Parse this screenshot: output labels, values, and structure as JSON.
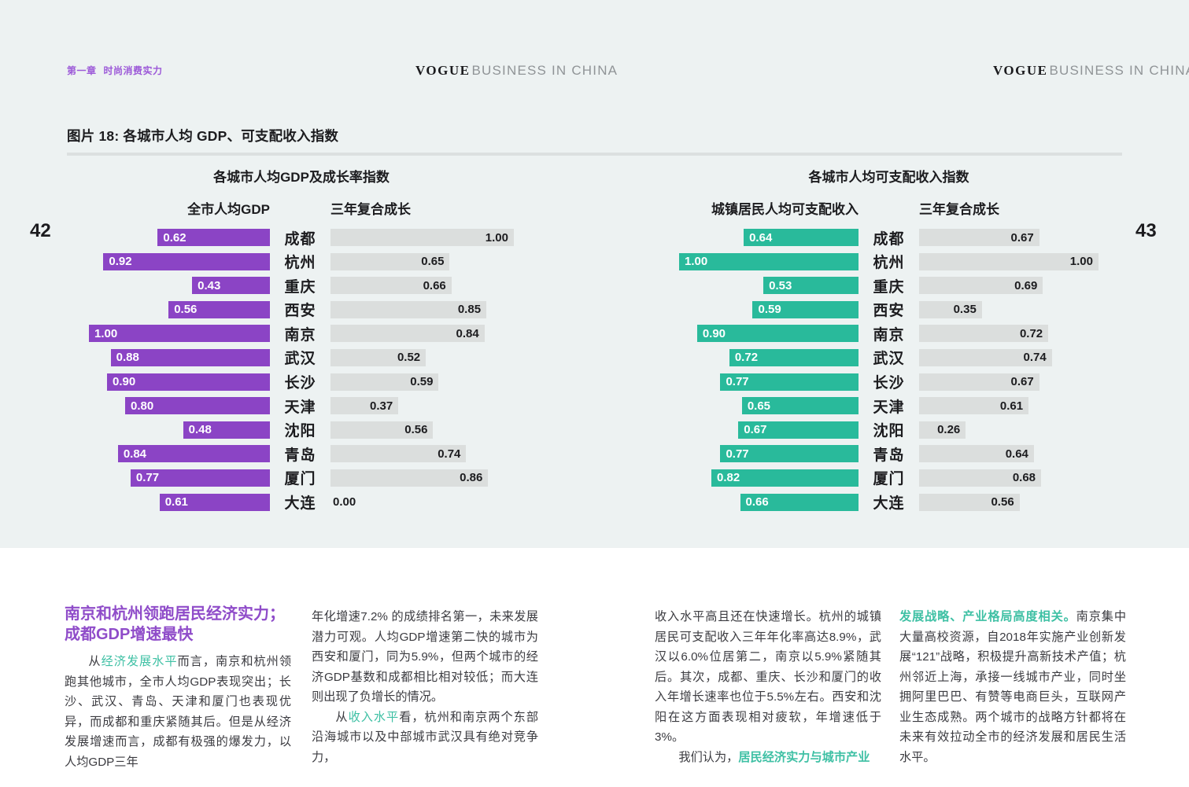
{
  "page": {
    "chapter_label": "第一章",
    "section_label": "时尚消费实力",
    "logo_serif": "VOGUE",
    "logo_sans": "BUSINESS IN CHINA",
    "figure_title": "图片 18: 各城市人均 GDP、可支配收入指数",
    "page_number_left": "42",
    "page_number_right": "43"
  },
  "colors": {
    "panel_background": "#EDF2F2",
    "gdp_bar": "#8B44C5",
    "income_bar": "#29BA9B",
    "growth_bar": "#DBDEDD",
    "heading_purple": "#8F4CC9",
    "accent_teal": "#3EC0A4"
  },
  "chart_data": [
    {
      "type": "bar",
      "title": "各城市人均GDP及成长率指数",
      "categories": [
        "成都",
        "杭州",
        "重庆",
        "西安",
        "南京",
        "武汉",
        "长沙",
        "天津",
        "沈阳",
        "青岛",
        "厦门",
        "大连"
      ],
      "series": [
        {
          "name": "全市人均GDP",
          "color": "#8B44C5",
          "align": "right",
          "values": [
            "0.62",
            "0.92",
            "0.43",
            "0.56",
            "1.00",
            "0.88",
            "0.90",
            "0.80",
            "0.48",
            "0.84",
            "0.77",
            "0.61"
          ]
        },
        {
          "name": "三年复合成长",
          "color": "#DBDEDD",
          "align": "left",
          "values": [
            "1.00",
            "0.65",
            "0.66",
            "0.85",
            "0.84",
            "0.52",
            "0.59",
            "0.37",
            "0.56",
            "0.74",
            "0.86",
            "0.00"
          ]
        }
      ],
      "xlim": [
        0,
        1
      ],
      "value_labels": "inside-bar",
      "grid": false,
      "legend": "column-headers"
    },
    {
      "type": "bar",
      "title": "各城市人均可支配收入指数",
      "categories": [
        "成都",
        "杭州",
        "重庆",
        "西安",
        "南京",
        "武汉",
        "长沙",
        "天津",
        "沈阳",
        "青岛",
        "厦门",
        "大连"
      ],
      "series": [
        {
          "name": "城镇居民人均可支配收入",
          "color": "#29BA9B",
          "align": "right",
          "values": [
            "0.64",
            "1.00",
            "0.53",
            "0.59",
            "0.90",
            "0.72",
            "0.77",
            "0.65",
            "0.67",
            "0.77",
            "0.82",
            "0.66"
          ]
        },
        {
          "name": "三年复合成长",
          "color": "#DBDEDD",
          "align": "left",
          "values": [
            "0.67",
            "1.00",
            "0.69",
            "0.35",
            "0.72",
            "0.74",
            "0.67",
            "0.61",
            "0.26",
            "0.64",
            "0.68",
            "0.56"
          ]
        }
      ],
      "xlim": [
        0,
        1
      ],
      "value_labels": "inside-bar",
      "grid": false,
      "legend": "column-headers"
    }
  ],
  "article": {
    "columns": [
      {
        "heading_lines": [
          "南京和杭州领跑居民经济实力；",
          "成都GDP增速最快"
        ],
        "paragraphs": [
          {
            "indent": true,
            "segments": [
              {
                "t": "从",
                "s": "n"
              },
              {
                "t": "经济发展水平",
                "s": "teal"
              },
              {
                "t": "而言，南京和杭州领跑其他城市，全市人均GDP表现突出；长沙、武汉、青岛、天津和厦门也表现优异，而成都和重庆紧随其后。但是从经济发展增速而言，成都有极强的爆发力，以人均GDP三年",
                "s": "n"
              }
            ]
          }
        ]
      },
      {
        "paragraphs": [
          {
            "indent": false,
            "segments": [
              {
                "t": "年化增速7.2% 的成绩排名第一，未来发展潜力可观。人均GDP增速第二快的城市为西安和厦门，同为5.9%，但两个城市的经济GDP基数和成都相比相对较低；而大连则出现了负增长的情况。",
                "s": "n"
              }
            ]
          },
          {
            "indent": true,
            "segments": [
              {
                "t": "从",
                "s": "n"
              },
              {
                "t": "收入水平",
                "s": "teal"
              },
              {
                "t": "看，杭州和南京两个东部沿海城市以及中部城市武汉具有绝对竞争力，",
                "s": "n"
              }
            ]
          }
        ]
      },
      {
        "paragraphs": [
          {
            "indent": false,
            "segments": [
              {
                "t": "收入水平高且还在快速增长。杭州的城镇居民可支配收入三年年化率高达8.9%，武汉以6.0%位居第二，南京以5.9%紧随其后。其次，成都、重庆、长沙和厦门的收入年增长速率也位于5.5%左右。西安和沈阳在这方面表现相对疲软，年增速低于3%。",
                "s": "n"
              }
            ]
          },
          {
            "indent": true,
            "segments": [
              {
                "t": "我们认为，",
                "s": "n"
              },
              {
                "t": "居民经济实力与城市产业",
                "s": "tb"
              }
            ]
          }
        ]
      },
      {
        "paragraphs": [
          {
            "indent": false,
            "segments": [
              {
                "t": "发展战略、产业格局高度相关。",
                "s": "tb"
              },
              {
                "t": "南京集中大量高校资源，自2018年实施产业创新发展“121”战略，积极提升高新技术产值；杭州邻近上海，承接一线城市产业，同时坐拥阿里巴巴、有赞等电商巨头，互联网产业生态成熟。两个城市的战略方针都将在未来有效拉动全市的经济发展和居民生活水平。",
                "s": "n"
              }
            ]
          }
        ]
      }
    ]
  }
}
